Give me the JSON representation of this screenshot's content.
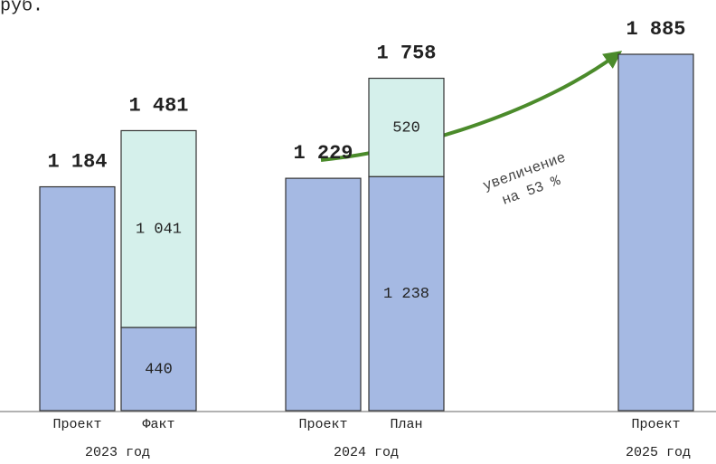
{
  "chart_data": {
    "type": "stacked_bar",
    "subtitle": "руб.",
    "categories": [
      "Проект",
      "Факт",
      "Проект",
      "План",
      "Проект"
    ],
    "groups": [
      "2023 год",
      "2024 год",
      "2025 год"
    ],
    "series": [
      {
        "color": "#a5b9e3",
        "values": [
          1184,
          440,
          1229,
          1238,
          1885
        ],
        "value_labels": [
          null,
          "440",
          null,
          "1 238",
          null
        ]
      },
      {
        "color": "#d5f0eb",
        "values": [
          null,
          1041,
          null,
          520,
          null
        ],
        "value_labels": [
          null,
          "1 041",
          null,
          "520",
          null
        ]
      }
    ],
    "totals": [
      1184,
      1481,
      1229,
      1758,
      1885
    ],
    "total_labels": [
      "1 184",
      "1 481",
      "1 229",
      "1 758",
      "1 885"
    ],
    "annotation": [
      "увеличение",
      "на 53 %"
    ]
  }
}
